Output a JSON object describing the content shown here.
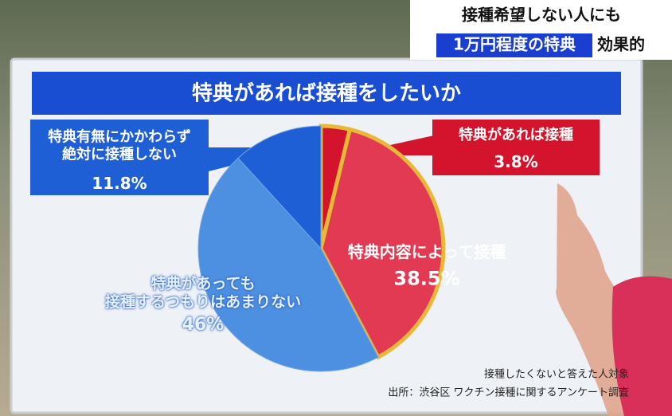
{
  "headline": {
    "line1": "接種希望しない人にも",
    "highlight": "1万円程度の特典",
    "suffix": "効果的"
  },
  "chart_data": {
    "type": "pie",
    "title": "特典があれば接種をしたいか",
    "categories": [
      "特典があれば接種",
      "特典内容によって接種",
      "特典があっても\n接種するつもりはあまりない",
      "特典有無にかかわらず\n絶対に接種しない"
    ],
    "values": [
      3.8,
      38.5,
      46,
      11.8
    ],
    "value_labels": [
      "3.8%",
      "38.5%",
      "46%",
      "11.8%"
    ],
    "colors": [
      "#d3142c",
      "#e23a52",
      "#4d8fe0",
      "#1f5fd6"
    ],
    "notes": [
      "接種したくないと答えた人対象",
      "出所：渋谷区 ワクチン接種に関するアンケート調査"
    ]
  }
}
